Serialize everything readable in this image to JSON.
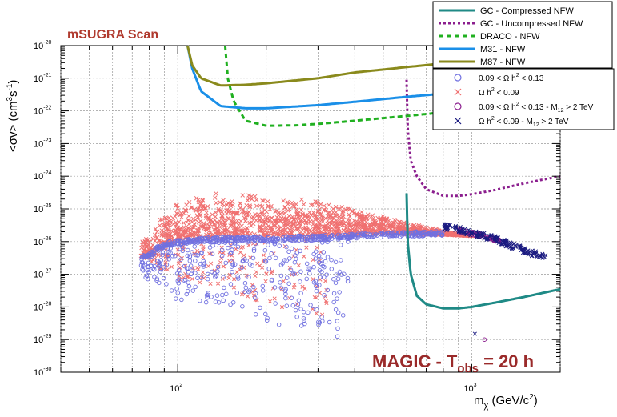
{
  "chart_data": {
    "type": "scatter",
    "title": "mSUGRA Scan",
    "annotation": "MAGIC - T_obs = 20 h",
    "annotation_parts": {
      "pre": "MAGIC - T",
      "sub": "obs",
      "post": " = 20 h"
    },
    "xlabel": "m_χ (GeV/c^2)",
    "xlabel_parts": {
      "m": "m",
      "sub": "χ",
      "unit": " (GeV/c",
      "sup": "2",
      "close": ")"
    },
    "ylabel": "<σv> (cm^3 s^-1)",
    "ylabel_parts": {
      "pre": "<σv> (cm",
      "sup1": "3",
      "mid": "s",
      "sup2": "-1",
      "close": ")"
    },
    "x_scale": "log",
    "y_scale": "log",
    "xlim": [
      40,
      2000
    ],
    "ylim": [
      1e-30,
      1e-20
    ],
    "x_ticks": [
      {
        "base": "10",
        "exp": "2",
        "value": 100
      },
      {
        "base": "10",
        "exp": "3",
        "value": 1000
      }
    ],
    "y_ticks": [
      {
        "base": "10",
        "exp": "-20",
        "value": 1e-20
      },
      {
        "base": "10",
        "exp": "-21",
        "value": 1e-21
      },
      {
        "base": "10",
        "exp": "-22",
        "value": 1e-22
      },
      {
        "base": "10",
        "exp": "-23",
        "value": 1e-23
      },
      {
        "base": "10",
        "exp": "-24",
        "value": 1e-24
      },
      {
        "base": "10",
        "exp": "-25",
        "value": 1e-25
      },
      {
        "base": "10",
        "exp": "-26",
        "value": 1e-26
      },
      {
        "base": "10",
        "exp": "-27",
        "value": 1e-27
      },
      {
        "base": "10",
        "exp": "-28",
        "value": 1e-28
      },
      {
        "base": "10",
        "exp": "-29",
        "value": 1e-29
      },
      {
        "base": "10",
        "exp": "-30",
        "value": 1e-30
      }
    ],
    "grid": true,
    "legend_placement": "top-right",
    "curves": [
      {
        "name": "GC - Compressed NFW",
        "color": "#1f8a86",
        "dash": "solid",
        "points": [
          [
            600,
            3e-25
          ],
          [
            605,
            1e-26
          ],
          [
            620,
            1e-27
          ],
          [
            650,
            2.2e-28
          ],
          [
            700,
            1.2e-28
          ],
          [
            800,
            9e-29
          ],
          [
            900,
            9e-29
          ],
          [
            1000,
            1e-28
          ],
          [
            1200,
            1.35e-28
          ],
          [
            1500,
            2e-28
          ],
          [
            2000,
            3.5e-28
          ]
        ]
      },
      {
        "name": "GC - Uncompressed NFW",
        "color": "#8b1e8e",
        "dash": "dotted",
        "points": [
          [
            600,
            9e-22
          ],
          [
            605,
            3e-23
          ],
          [
            620,
            3e-24
          ],
          [
            650,
            1e-24
          ],
          [
            700,
            4e-25
          ],
          [
            800,
            2.5e-25
          ],
          [
            900,
            2.5e-25
          ],
          [
            1000,
            2.8e-25
          ],
          [
            1200,
            3.8e-25
          ],
          [
            1500,
            6e-25
          ],
          [
            2000,
            1e-24
          ]
        ]
      },
      {
        "name": "DRACO - NFW",
        "color": "#20b020",
        "dash": "dashed",
        "points": [
          [
            145,
            1e-20
          ],
          [
            148,
            1e-21
          ],
          [
            155,
            2e-22
          ],
          [
            170,
            5e-23
          ],
          [
            200,
            3.5e-23
          ],
          [
            250,
            3.6e-23
          ],
          [
            300,
            4e-23
          ],
          [
            400,
            5e-23
          ],
          [
            600,
            7e-23
          ],
          [
            1000,
            1.1e-22
          ],
          [
            2000,
            2e-22
          ]
        ]
      },
      {
        "name": "M31 - NFW",
        "color": "#1a8fe8",
        "dash": "solid",
        "points": [
          [
            108,
            1e-20
          ],
          [
            112,
            2e-21
          ],
          [
            120,
            4e-22
          ],
          [
            140,
            1.4e-22
          ],
          [
            170,
            1.2e-22
          ],
          [
            200,
            1.2e-22
          ],
          [
            300,
            1.5e-22
          ],
          [
            400,
            1.9e-22
          ],
          [
            600,
            2.7e-22
          ],
          [
            1000,
            4e-22
          ],
          [
            2000,
            6.5e-22
          ]
        ]
      },
      {
        "name": "M87 - NFW",
        "color": "#8a8a1c",
        "dash": "solid",
        "points": [
          [
            108,
            1e-20
          ],
          [
            112,
            2.5e-21
          ],
          [
            120,
            1e-21
          ],
          [
            140,
            6e-22
          ],
          [
            170,
            6.3e-22
          ],
          [
            200,
            7e-22
          ],
          [
            300,
            1e-21
          ],
          [
            400,
            1.5e-21
          ],
          [
            600,
            2.2e-21
          ],
          [
            1000,
            3.5e-21
          ],
          [
            2000,
            6e-21
          ]
        ]
      }
    ],
    "scatter_series": [
      {
        "name": "0.09 < Ω h^2 < 0.13",
        "parts": {
          "pre": "0.09 < Ω h",
          "sup": "2",
          "post": " < 0.13"
        },
        "marker": "circle",
        "color": "#7070e0"
      },
      {
        "name": "Ω h^2 < 0.09",
        "parts": {
          "pre": "Ω h",
          "sup": "2",
          "post": " < 0.09"
        },
        "marker": "x",
        "color": "#f07070"
      },
      {
        "name": "0.09 < Ω h^2 < 0.13 - M_12 > 2 TeV",
        "parts": {
          "pre": "0.09 < Ω h",
          "sup": "2",
          "mid": " < 0.13 - M",
          "sub": "12",
          "post": " > 2 TeV"
        },
        "marker": "circle",
        "color": "#8b1e8e"
      },
      {
        "name": "Ω h^2 < 0.09 - M_12 > 2 TeV",
        "parts": {
          "pre": "Ω h",
          "sup": "2",
          "mid": " < 0.09 - M",
          "sub": "12",
          "post": " > 2 TeV"
        },
        "marker": "x",
        "color": "#1a1a80"
      }
    ],
    "scatter_regions": {
      "red_band": {
        "upper": [
          [
            75,
            1e-26
          ],
          [
            85,
            4e-26
          ],
          [
            100,
            1.5e-25
          ],
          [
            120,
            2.8e-25
          ],
          [
            140,
            3.3e-25
          ],
          [
            200,
            2.7e-25
          ],
          [
            300,
            1.8e-25
          ],
          [
            500,
            6e-26
          ],
          [
            800,
            2.2e-26
          ],
          [
            1000,
            1.5e-26
          ]
        ],
        "lower": [
          [
            75,
            2e-27
          ],
          [
            85,
            5e-27
          ],
          [
            100,
            1e-26
          ],
          [
            150,
            1.4e-26
          ],
          [
            300,
            1.4e-26
          ],
          [
            500,
            1.7e-26
          ],
          [
            800,
            1.6e-26
          ],
          [
            1000,
            1.5e-26
          ]
        ]
      },
      "blue_band": [
        [
          75,
          3e-27
        ],
        [
          85,
          6e-27
        ],
        [
          95,
          9e-27
        ],
        [
          120,
          1.1e-26
        ],
        [
          160,
          1.2e-26
        ],
        [
          200,
          1.2e-26
        ],
        [
          300,
          1.3e-26
        ],
        [
          500,
          1.6e-26
        ],
        [
          800,
          1.8e-26
        ]
      ],
      "blue_scatter_lower": [
        [
          75,
          1e-27
        ],
        [
          100,
          1.5e-28
        ],
        [
          150,
          8e-29
        ],
        [
          200,
          3e-29
        ],
        [
          300,
          1.5e-29
        ],
        [
          370,
          1e-29
        ]
      ],
      "navy_tail": [
        [
          800,
          2.8e-26
        ],
        [
          900,
          2.4e-26
        ],
        [
          1000,
          1.9e-26
        ],
        [
          1200,
          1.2e-26
        ],
        [
          1400,
          7e-27
        ],
        [
          1600,
          4.5e-27
        ],
        [
          1800,
          3.5e-27
        ]
      ],
      "purple_tail": [
        [
          900,
          2.2e-26
        ],
        [
          1000,
          1.8e-26
        ],
        [
          1150,
          1.3e-26
        ],
        [
          1250,
          1e-26
        ]
      ],
      "outliers": [
        {
          "x": 1025,
          "y": 1.5e-29,
          "marker": "x",
          "color": "#1a1a80"
        },
        {
          "x": 1105,
          "y": 1e-29,
          "marker": "circle",
          "color": "#8b1e8e"
        }
      ]
    }
  }
}
